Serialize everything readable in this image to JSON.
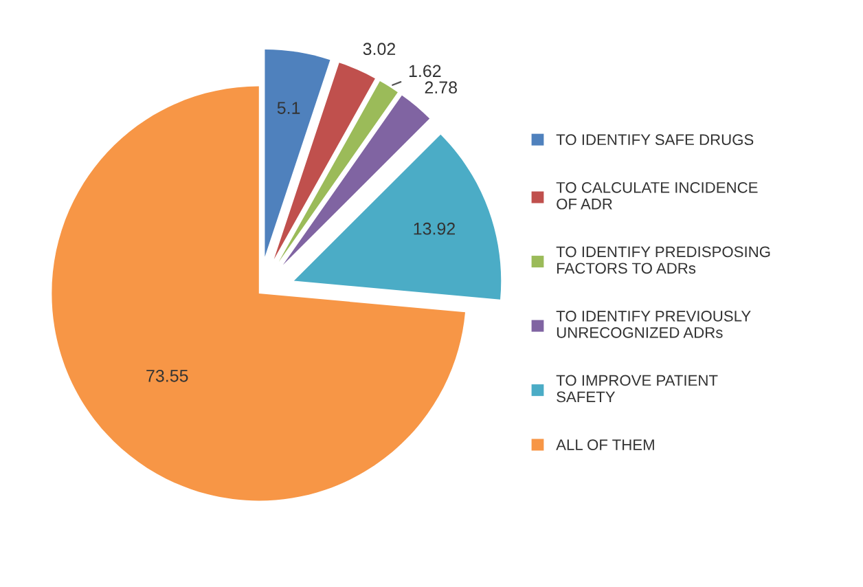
{
  "chart_data": {
    "type": "pie",
    "categories": [
      "TO IDENTIFY SAFE DRUGS",
      "TO CALCULATE INCIDENCE OF ADR",
      "TO IDENTIFY PREDISPOSING FACTORS TO ADRs",
      "TO IDENTIFY PREVIOUSLY UNRECOGNIZED ADRs",
      "TO IMPROVE PATIENT SAFETY",
      "ALL OF THEM"
    ],
    "values": [
      5.1,
      3.02,
      1.62,
      2.78,
      13.92,
      73.55
    ],
    "colors": [
      "#4f81bd",
      "#c0504d",
      "#9bbb59",
      "#8064a2",
      "#4bacc6",
      "#f79646"
    ],
    "data_labels": true,
    "legend": "right"
  }
}
